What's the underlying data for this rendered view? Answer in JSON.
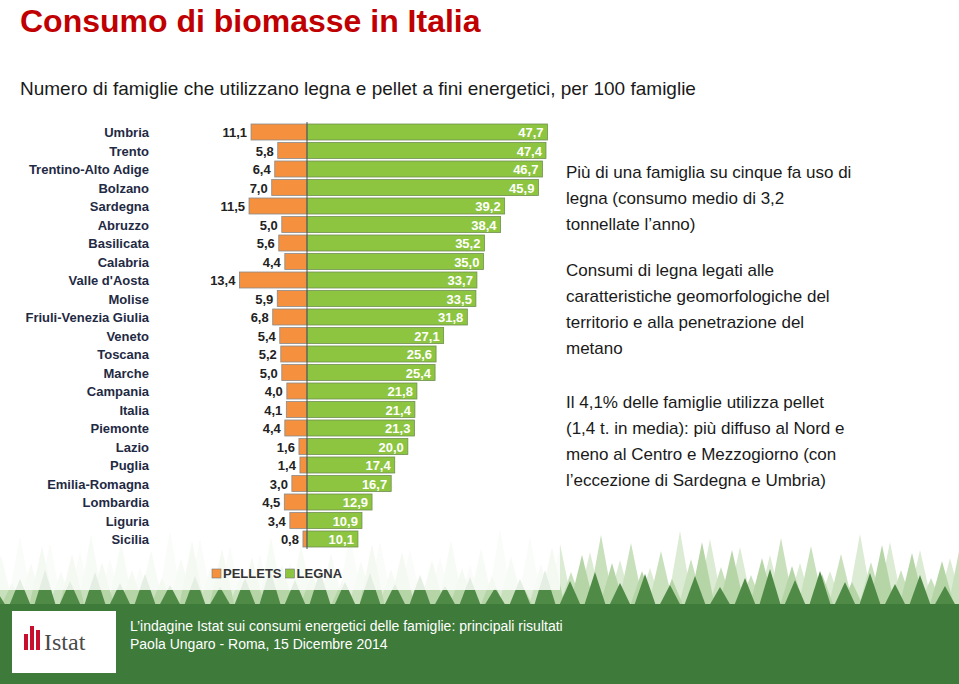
{
  "chart_data": {
    "type": "butterfly",
    "title": "Consumo di biomasse in Italia",
    "subtitle": "Numero di famiglie che utilizzano legna e pellet a fini energetici, per 100 famiglie",
    "orientation": "horizontal",
    "categories": [
      "Umbria",
      "Trento",
      "Trentino-Alto Adige",
      "Bolzano",
      "Sardegna",
      "Abruzzo",
      "Basilicata",
      "Calabria",
      "Valle d'Aosta",
      "Molise",
      "Friuli-Venezia Giulia",
      "Veneto",
      "Toscana",
      "Marche",
      "Campania",
      "Italia",
      "Piemonte",
      "Lazio",
      "Puglia",
      "Emilia-Romagna",
      "Lombardia",
      "Liguria",
      "Sicilia"
    ],
    "series": [
      {
        "name": "PELLETS",
        "color": "#f5913e",
        "values": [
          11.1,
          5.8,
          6.4,
          7.0,
          11.5,
          5.0,
          5.6,
          4.4,
          13.4,
          5.9,
          6.8,
          5.4,
          5.2,
          5.0,
          4.0,
          4.1,
          4.4,
          1.6,
          1.4,
          3.0,
          4.5,
          3.4,
          0.8
        ],
        "value_labels": [
          "11,1",
          "5,8",
          "6,4",
          "7,0",
          "11,5",
          "5,0",
          "5,6",
          "4,4",
          "13,4",
          "5,9",
          "6,8",
          "5,4",
          "5,2",
          "5,0",
          "4,0",
          "4,1",
          "4,4",
          "1,6",
          "1,4",
          "3,0",
          "4,5",
          "3,4",
          "0,8"
        ]
      },
      {
        "name": "LEGNA",
        "color": "#8dc540",
        "values": [
          47.7,
          47.4,
          46.7,
          45.9,
          39.2,
          38.4,
          35.2,
          35.0,
          33.7,
          33.5,
          31.8,
          27.1,
          25.6,
          25.4,
          21.8,
          21.4,
          21.3,
          20.0,
          17.4,
          16.7,
          12.9,
          10.9,
          10.1
        ],
        "value_labels": [
          "47,7",
          "47,4",
          "46,7",
          "45,9",
          "39,2",
          "38,4",
          "35,2",
          "35,0",
          "33,7",
          "33,5",
          "31,8",
          "27,1",
          "25,6",
          "25,4",
          "21,8",
          "21,4",
          "21,3",
          "20,0",
          "17,4",
          "16,7",
          "12,9",
          "10,9",
          "10,1"
        ]
      }
    ],
    "xlim": [
      0,
      48
    ],
    "data_labels": true,
    "tick_labels": "y",
    "grid": false,
    "legend": "bottom",
    "annotations": [
      [
        "Più di una famiglia su cinque fa uso di",
        "legna (consumo medio di 3,2",
        "tonnellate l’anno)"
      ],
      [
        "Consumi di legna legati alle",
        "caratteristiche geomorfologiche del",
        "territorio e alla penetrazione del",
        "metano"
      ],
      [
        "Il 4,1% delle famiglie utilizza pellet",
        "(1,4 t. in media): più diffuso al Nord e",
        "meno al Centro e Mezzogiorno (con",
        "l’eccezione di Sardegna e Umbria)"
      ]
    ]
  },
  "footer": {
    "logo": "Istat",
    "lines": [
      "L’indagine Istat sui consumi energetici delle famiglie: principali risultati",
      "Paola Ungaro - Roma, 15 Dicembre 2014"
    ]
  }
}
